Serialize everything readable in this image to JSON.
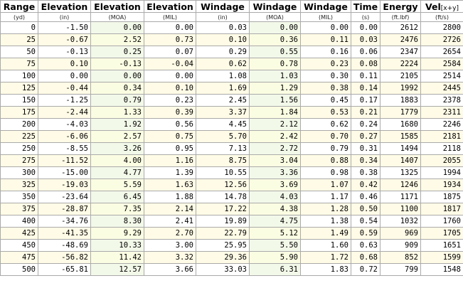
{
  "headers": {
    "range": "Range",
    "elevation_in": "Elevation",
    "elevation_moa": "Elevation",
    "elevation_mil": "Elevation",
    "windage_in": "Windage",
    "windage_moa": "Windage",
    "windage_mil": "Windage",
    "time": "Time",
    "energy": "Energy",
    "velocity": "Vel",
    "velocity_sub": "[x+y]"
  },
  "units": {
    "range": "(yd)",
    "elevation_in": "(in)",
    "elevation_moa": "(MOA)",
    "elevation_mil": "(MIL)",
    "windage_in": "(in)",
    "windage_moa": "(MOA)",
    "windage_mil": "(MIL)",
    "time": "(s)",
    "energy": "(ft.lbf)",
    "velocity": "(ft/s)"
  },
  "rows": [
    [
      "0",
      "-1.50",
      "0.00",
      "0.00",
      "0.03",
      "0.00",
      "0.00",
      "0.00",
      "2612",
      "2800"
    ],
    [
      "25",
      "-0.67",
      "2.52",
      "0.73",
      "0.10",
      "0.36",
      "0.11",
      "0.03",
      "2476",
      "2726"
    ],
    [
      "50",
      "-0.13",
      "0.25",
      "0.07",
      "0.29",
      "0.55",
      "0.16",
      "0.06",
      "2347",
      "2654"
    ],
    [
      "75",
      "0.10",
      "-0.13",
      "-0.04",
      "0.62",
      "0.78",
      "0.23",
      "0.08",
      "2224",
      "2584"
    ],
    [
      "100",
      "0.00",
      "0.00",
      "0.00",
      "1.08",
      "1.03",
      "0.30",
      "0.11",
      "2105",
      "2514"
    ],
    [
      "125",
      "-0.44",
      "0.34",
      "0.10",
      "1.69",
      "1.29",
      "0.38",
      "0.14",
      "1992",
      "2445"
    ],
    [
      "150",
      "-1.25",
      "0.79",
      "0.23",
      "2.45",
      "1.56",
      "0.45",
      "0.17",
      "1883",
      "2378"
    ],
    [
      "175",
      "-2.44",
      "1.33",
      "0.39",
      "3.37",
      "1.84",
      "0.53",
      "0.21",
      "1779",
      "2311"
    ],
    [
      "200",
      "-4.03",
      "1.92",
      "0.56",
      "4.45",
      "2.12",
      "0.62",
      "0.24",
      "1680",
      "2246"
    ],
    [
      "225",
      "-6.06",
      "2.57",
      "0.75",
      "5.70",
      "2.42",
      "0.70",
      "0.27",
      "1585",
      "2181"
    ],
    [
      "250",
      "-8.55",
      "3.26",
      "0.95",
      "7.13",
      "2.72",
      "0.79",
      "0.31",
      "1494",
      "2118"
    ],
    [
      "275",
      "-11.52",
      "4.00",
      "1.16",
      "8.75",
      "3.04",
      "0.88",
      "0.34",
      "1407",
      "2055"
    ],
    [
      "300",
      "-15.00",
      "4.77",
      "1.39",
      "10.55",
      "3.36",
      "0.98",
      "0.38",
      "1325",
      "1994"
    ],
    [
      "325",
      "-19.03",
      "5.59",
      "1.63",
      "12.56",
      "3.69",
      "1.07",
      "0.42",
      "1246",
      "1934"
    ],
    [
      "350",
      "-23.64",
      "6.45",
      "1.88",
      "14.78",
      "4.03",
      "1.17",
      "0.46",
      "1171",
      "1875"
    ],
    [
      "375",
      "-28.87",
      "7.35",
      "2.14",
      "17.22",
      "4.38",
      "1.28",
      "0.50",
      "1100",
      "1817"
    ],
    [
      "400",
      "-34.76",
      "8.30",
      "2.41",
      "19.89",
      "4.75",
      "1.38",
      "0.54",
      "1032",
      "1760"
    ],
    [
      "425",
      "-41.35",
      "9.29",
      "2.70",
      "22.79",
      "5.12",
      "1.49",
      "0.59",
      "969",
      "1705"
    ],
    [
      "450",
      "-48.69",
      "10.33",
      "3.00",
      "25.95",
      "5.50",
      "1.60",
      "0.63",
      "909",
      "1651"
    ],
    [
      "475",
      "-56.82",
      "11.42",
      "3.32",
      "29.36",
      "5.90",
      "1.72",
      "0.68",
      "852",
      "1599"
    ],
    [
      "500",
      "-65.81",
      "12.57",
      "3.66",
      "33.03",
      "6.31",
      "1.83",
      "0.72",
      "799",
      "1548"
    ]
  ]
}
